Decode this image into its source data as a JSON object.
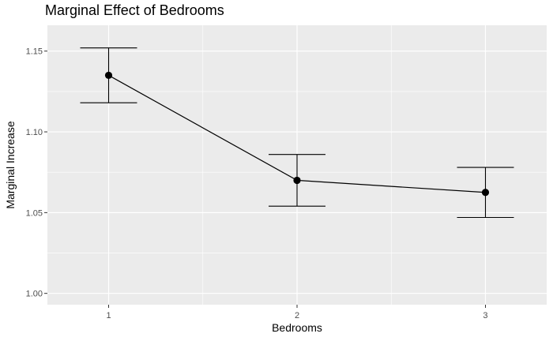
{
  "chart_data": {
    "type": "line",
    "title": "Marginal Effect of Bedrooms",
    "xlabel": "Bedrooms",
    "ylabel": "Marginal Increase",
    "categories": [
      "1",
      "2",
      "3"
    ],
    "x": [
      1,
      2,
      3
    ],
    "y": [
      1.135,
      1.07,
      1.0625
    ],
    "error_lower": [
      1.118,
      1.054,
      1.047
    ],
    "error_upper": [
      1.152,
      1.086,
      1.078
    ],
    "yticks": [
      1.0,
      1.05,
      1.1,
      1.15
    ],
    "ytick_labels": [
      "1.00",
      "1.05",
      "1.10",
      "1.15"
    ],
    "xtick_labels": [
      "1",
      "2",
      "3"
    ],
    "xlim": [
      0.675,
      3.325
    ],
    "ylim": [
      0.993,
      1.166
    ],
    "grid": true,
    "colors": {
      "panel_background": "#ebebeb",
      "grid_major": "#ffffff",
      "line": "#000000",
      "point": "#000000"
    }
  }
}
